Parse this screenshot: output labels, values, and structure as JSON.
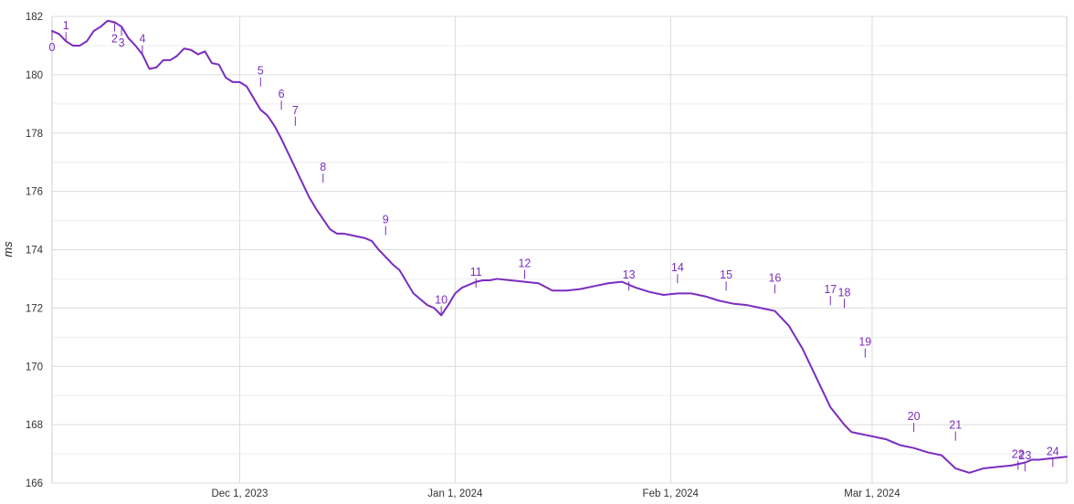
{
  "chart_data": {
    "type": "line",
    "ylabel": "ms",
    "xlabel": "",
    "ylim": [
      166,
      182
    ],
    "y_ticks": [
      166,
      168,
      170,
      172,
      174,
      176,
      178,
      180,
      182
    ],
    "x_range": [
      "2023-11-04",
      "2024-03-29"
    ],
    "x_ticks": [
      {
        "date": "2023-12-01",
        "label": "Dec 1, 2023"
      },
      {
        "date": "2024-01-01",
        "label": "Jan 1, 2024"
      },
      {
        "date": "2024-02-01",
        "label": "Feb 1, 2024"
      },
      {
        "date": "2024-03-01",
        "label": "Mar 1, 2024"
      }
    ],
    "grid": true,
    "legend": "none",
    "line_color": "#7b2cbf",
    "series": [
      {
        "x": [
          "2023-11-04",
          "2023-11-05",
          "2023-11-06",
          "2023-11-07",
          "2023-11-08",
          "2023-11-09",
          "2023-11-10",
          "2023-11-11",
          "2023-11-12",
          "2023-11-13",
          "2023-11-14",
          "2023-11-15",
          "2023-11-16",
          "2023-11-17",
          "2023-11-18",
          "2023-11-19",
          "2023-11-20",
          "2023-11-21",
          "2023-11-22",
          "2023-11-23",
          "2023-11-24",
          "2023-11-25",
          "2023-11-26",
          "2023-11-27",
          "2023-11-28",
          "2023-11-29",
          "2023-11-30",
          "2023-12-01",
          "2023-12-02",
          "2023-12-03",
          "2023-12-04",
          "2023-12-05",
          "2023-12-06",
          "2023-12-07",
          "2023-12-08",
          "2023-12-09",
          "2023-12-10",
          "2023-12-11",
          "2023-12-12",
          "2023-12-13",
          "2023-12-14",
          "2023-12-15",
          "2023-12-16",
          "2023-12-17",
          "2023-12-18",
          "2023-12-19",
          "2023-12-20",
          "2023-12-21",
          "2023-12-22",
          "2023-12-23",
          "2023-12-24",
          "2023-12-25",
          "2023-12-26",
          "2023-12-27",
          "2023-12-28",
          "2023-12-29",
          "2023-12-30",
          "2023-12-31",
          "2024-01-01",
          "2024-01-02",
          "2024-01-03",
          "2024-01-04",
          "2024-01-05",
          "2024-01-06",
          "2024-01-07",
          "2024-01-09",
          "2024-01-11",
          "2024-01-13",
          "2024-01-15",
          "2024-01-17",
          "2024-01-19",
          "2024-01-21",
          "2024-01-23",
          "2024-01-25",
          "2024-01-27",
          "2024-01-29",
          "2024-01-31",
          "2024-02-02",
          "2024-02-04",
          "2024-02-06",
          "2024-02-08",
          "2024-02-10",
          "2024-02-12",
          "2024-02-14",
          "2024-02-16",
          "2024-02-18",
          "2024-02-20",
          "2024-02-22",
          "2024-02-24",
          "2024-02-26",
          "2024-02-27",
          "2024-02-28",
          "2024-02-29",
          "2024-03-01",
          "2024-03-02",
          "2024-03-03",
          "2024-03-04",
          "2024-03-05",
          "2024-03-07",
          "2024-03-09",
          "2024-03-11",
          "2024-03-13",
          "2024-03-15",
          "2024-03-17",
          "2024-03-19",
          "2024-03-21",
          "2024-03-23",
          "2024-03-24",
          "2024-03-25",
          "2024-03-27",
          "2024-03-29"
        ],
        "y": [
          181.5,
          181.4,
          181.15,
          181.0,
          181.0,
          181.15,
          181.5,
          181.65,
          181.85,
          181.8,
          181.65,
          181.25,
          181.0,
          180.7,
          180.2,
          180.25,
          180.5,
          180.5,
          180.65,
          180.9,
          180.85,
          180.7,
          180.8,
          180.4,
          180.35,
          179.9,
          179.75,
          179.75,
          179.6,
          179.2,
          178.8,
          178.6,
          178.25,
          177.8,
          177.3,
          176.8,
          176.3,
          175.8,
          175.4,
          175.05,
          174.7,
          174.55,
          174.55,
          174.5,
          174.45,
          174.4,
          174.3,
          174.0,
          173.75,
          173.5,
          173.3,
          172.9,
          172.5,
          172.3,
          172.1,
          172.0,
          171.75,
          172.1,
          172.5,
          172.7,
          172.8,
          172.9,
          172.95,
          172.95,
          173.0,
          172.95,
          172.9,
          172.85,
          172.6,
          172.6,
          172.65,
          172.75,
          172.85,
          172.9,
          172.7,
          172.55,
          172.45,
          172.5,
          172.5,
          172.4,
          172.25,
          172.15,
          172.1,
          172.0,
          171.9,
          171.4,
          170.6,
          169.6,
          168.6,
          168.0,
          167.75,
          167.7,
          167.65,
          167.6,
          167.55,
          167.5,
          167.4,
          167.3,
          167.2,
          167.05,
          166.95,
          166.5,
          166.35,
          166.5,
          166.55,
          166.6,
          166.7,
          166.8,
          166.8,
          166.85,
          166.9
        ]
      }
    ],
    "annotations": [
      {
        "label": "0",
        "x": "2023-11-04",
        "y": 181.5,
        "position": "below"
      },
      {
        "label": "1",
        "x": "2023-11-06",
        "y": 181.15,
        "position": "above"
      },
      {
        "label": "2",
        "x": "2023-11-13",
        "y": 181.8,
        "position": "below"
      },
      {
        "label": "3",
        "x": "2023-11-14",
        "y": 181.65,
        "position": "below"
      },
      {
        "label": "4",
        "x": "2023-11-17",
        "y": 180.7,
        "position": "above"
      },
      {
        "label": "5",
        "x": "2023-12-04",
        "y": 179.6,
        "position": "above"
      },
      {
        "label": "6",
        "x": "2023-12-07",
        "y": 178.8,
        "position": "above"
      },
      {
        "label": "7",
        "x": "2023-12-09",
        "y": 178.25,
        "position": "above"
      },
      {
        "label": "8",
        "x": "2023-12-13",
        "y": 176.3,
        "position": "above"
      },
      {
        "label": "9",
        "x": "2023-12-22",
        "y": 174.5,
        "position": "above"
      },
      {
        "label": "10",
        "x": "2023-12-30",
        "y": 171.75,
        "position": "above"
      },
      {
        "label": "11",
        "x": "2024-01-04",
        "y": 172.7,
        "position": "above"
      },
      {
        "label": "12",
        "x": "2024-01-11",
        "y": 173.0,
        "position": "above"
      },
      {
        "label": "13",
        "x": "2024-01-26",
        "y": 172.6,
        "position": "above"
      },
      {
        "label": "14",
        "x": "2024-02-02",
        "y": 172.85,
        "position": "above"
      },
      {
        "label": "15",
        "x": "2024-02-09",
        "y": 172.6,
        "position": "above"
      },
      {
        "label": "16",
        "x": "2024-02-16",
        "y": 172.5,
        "position": "above"
      },
      {
        "label": "17",
        "x": "2024-02-24",
        "y": 172.1,
        "position": "above"
      },
      {
        "label": "18",
        "x": "2024-02-26",
        "y": 172.0,
        "position": "above"
      },
      {
        "label": "19",
        "x": "2024-02-29",
        "y": 170.3,
        "position": "above"
      },
      {
        "label": "20",
        "x": "2024-03-07",
        "y": 167.75,
        "position": "above"
      },
      {
        "label": "21",
        "x": "2024-03-13",
        "y": 167.45,
        "position": "above"
      },
      {
        "label": "22",
        "x": "2024-03-22",
        "y": 166.45,
        "position": "above"
      },
      {
        "label": "23",
        "x": "2024-03-23",
        "y": 166.4,
        "position": "above"
      },
      {
        "label": "24",
        "x": "2024-03-27",
        "y": 166.55,
        "position": "above"
      }
    ]
  }
}
